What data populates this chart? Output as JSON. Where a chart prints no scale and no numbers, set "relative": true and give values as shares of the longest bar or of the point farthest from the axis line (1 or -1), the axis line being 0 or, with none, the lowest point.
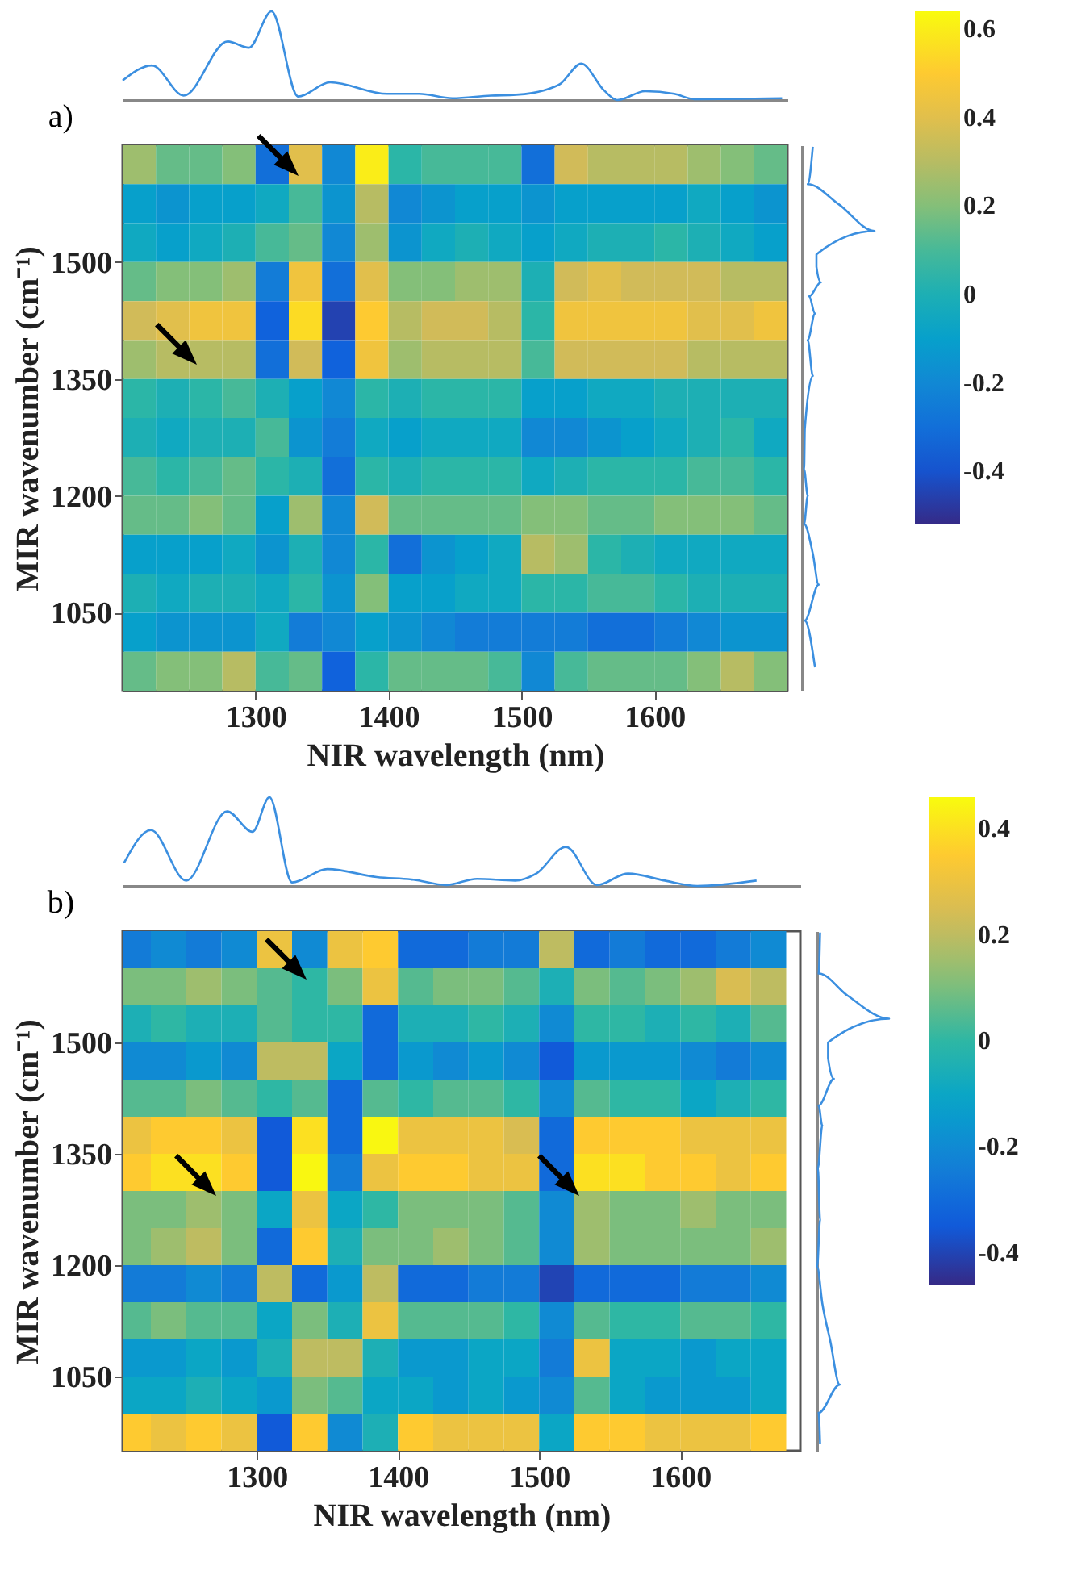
{
  "chart_data": [
    {
      "type": "line",
      "title": "a)",
      "relative": true,
      "tick_labels": false,
      "xlim": [
        1200,
        1700
      ],
      "x": [
        1200,
        1222,
        1246,
        1279,
        1295,
        1312,
        1332,
        1356,
        1399,
        1423,
        1448,
        1477,
        1496,
        1517,
        1529,
        1545,
        1562,
        1572,
        1593,
        1615,
        1630,
        1696
      ],
      "series": [
        {
          "color": "#3b8fe0",
          "values": [
            0.22,
            0.39,
            0.05,
            0.66,
            0.59,
            1.0,
            0.04,
            0.2,
            0.07,
            0.07,
            0.02,
            0.05,
            0.06,
            0.11,
            0.18,
            0.41,
            0.11,
            0,
            0.1,
            0.07,
            0.01,
            0.02
          ]
        }
      ]
    },
    {
      "type": "heatmap",
      "xlabel": "NIR wavelength (nm)",
      "ylabel": "MIR wavenumber (cm⁻¹)",
      "xlim": [
        1200,
        1700
      ],
      "ylim": [
        950,
        1650
      ],
      "xticks": [
        1300,
        1400,
        1500,
        1600
      ],
      "yticks": [
        1050,
        1200,
        1350,
        1500
      ],
      "clim": [
        -0.52,
        0.64
      ],
      "cticks": [
        -0.4,
        -0.2,
        0,
        0.2,
        0.4,
        0.6
      ],
      "x": [
        1212.5,
        1237.5,
        1262.5,
        1287.5,
        1312.5,
        1337.5,
        1362.5,
        1387.5,
        1412.5,
        1437.5,
        1462.5,
        1487.5,
        1512.5,
        1537.5,
        1562.5,
        1587.5,
        1612.5,
        1637.5,
        1662.5,
        1687.5
      ],
      "y": [
        1625,
        1575,
        1525,
        1475,
        1425,
        1375,
        1325,
        1275,
        1225,
        1175,
        1125,
        1075,
        1025,
        975
      ],
      "cells": [
        [
          0.25,
          0.15,
          0.15,
          0.2,
          -0.3,
          0.4,
          -0.2,
          0.6,
          0.05,
          0.1,
          0.1,
          0.1,
          -0.3,
          0.35,
          0.3,
          0.3,
          0.3,
          0.25,
          0.2,
          0.15
        ],
        [
          -0.1,
          -0.15,
          -0.1,
          -0.1,
          -0.05,
          0.1,
          -0.15,
          0.3,
          -0.2,
          -0.15,
          -0.1,
          -0.1,
          -0.15,
          -0.1,
          -0.1,
          -0.1,
          -0.1,
          -0.05,
          -0.1,
          -0.15
        ],
        [
          -0.05,
          -0.1,
          -0.05,
          0,
          0.1,
          0.15,
          -0.2,
          0.25,
          -0.15,
          -0.05,
          0,
          -0.05,
          -0.1,
          -0.05,
          0,
          0,
          0.05,
          0,
          -0.05,
          -0.1
        ],
        [
          0.15,
          0.2,
          0.2,
          0.25,
          -0.25,
          0.45,
          -0.3,
          0.4,
          0.2,
          0.2,
          0.25,
          0.25,
          0,
          0.35,
          0.4,
          0.35,
          0.35,
          0.35,
          0.3,
          0.3
        ],
        [
          0.35,
          0.4,
          0.45,
          0.45,
          -0.35,
          0.55,
          -0.45,
          0.5,
          0.3,
          0.35,
          0.35,
          0.3,
          0.05,
          0.45,
          0.45,
          0.45,
          0.45,
          0.4,
          0.4,
          0.45
        ],
        [
          0.25,
          0.3,
          0.3,
          0.3,
          -0.3,
          0.35,
          -0.35,
          0.45,
          0.25,
          0.3,
          0.3,
          0.3,
          0.1,
          0.35,
          0.35,
          0.35,
          0.35,
          0.3,
          0.3,
          0.3
        ],
        [
          0.05,
          0,
          0.05,
          0.1,
          0,
          -0.1,
          -0.2,
          0.05,
          0,
          0.05,
          0.05,
          0.05,
          -0.1,
          -0.1,
          -0.05,
          -0.05,
          0,
          0,
          0,
          0
        ],
        [
          0,
          -0.05,
          0,
          0,
          0.1,
          -0.15,
          -0.25,
          -0.05,
          -0.1,
          -0.05,
          -0.05,
          -0.05,
          -0.2,
          -0.2,
          -0.15,
          -0.1,
          -0.05,
          0,
          0.05,
          -0.05
        ],
        [
          0.1,
          0.05,
          0.1,
          0.15,
          0.05,
          0,
          -0.3,
          0.05,
          0,
          0.05,
          0.05,
          0.05,
          -0.05,
          0,
          0.05,
          0.05,
          0.05,
          0.1,
          0.1,
          0.05
        ],
        [
          0.15,
          0.15,
          0.2,
          0.15,
          -0.1,
          0.25,
          -0.2,
          0.35,
          0.15,
          0.15,
          0.15,
          0.15,
          0.2,
          0.2,
          0.15,
          0.15,
          0.2,
          0.2,
          0.2,
          0.15
        ],
        [
          -0.1,
          -0.1,
          -0.1,
          -0.05,
          -0.15,
          0,
          -0.2,
          0.05,
          -0.3,
          -0.15,
          -0.1,
          -0.05,
          0.3,
          0.25,
          0.05,
          0,
          -0.05,
          -0.05,
          -0.05,
          -0.05
        ],
        [
          0,
          -0.05,
          0,
          0,
          -0.05,
          0.05,
          -0.15,
          0.2,
          -0.1,
          -0.1,
          -0.05,
          -0.05,
          0.05,
          0.05,
          0.1,
          0.1,
          0.05,
          0,
          0,
          0
        ],
        [
          -0.1,
          -0.15,
          -0.15,
          -0.15,
          -0.05,
          -0.25,
          -0.2,
          -0.1,
          -0.15,
          -0.2,
          -0.25,
          -0.25,
          -0.25,
          -0.25,
          -0.3,
          -0.3,
          -0.25,
          -0.2,
          -0.15,
          -0.15
        ],
        [
          0.15,
          0.2,
          0.2,
          0.3,
          0.1,
          0.15,
          -0.35,
          0.05,
          0.15,
          0.15,
          0.15,
          0.1,
          -0.2,
          0.1,
          0.15,
          0.15,
          0.15,
          0.2,
          0.3,
          0.2
        ]
      ]
    },
    {
      "type": "line",
      "relative": true,
      "orientation": "horizontal",
      "tick_labels": false,
      "ylim": [
        950,
        1650
      ],
      "x": [
        1648,
        1600,
        1574,
        1540,
        1510,
        1494,
        1474,
        1456,
        1434,
        1400,
        1354,
        1286,
        1234,
        1200,
        1164,
        1126,
        1086,
        1040,
        980
      ],
      "series": [
        {
          "color": "#3b8fe0",
          "values": [
            0.15,
            0.08,
            0.51,
            1.0,
            0.2,
            0.2,
            0.26,
            0.1,
            0.18,
            0.08,
            0.15,
            0.04,
            0.03,
            0.08,
            0.03,
            0.15,
            0.23,
            0.04,
            0.18
          ]
        }
      ]
    },
    {
      "type": "line",
      "title": "b)",
      "relative": true,
      "tick_labels": false,
      "xlim": [
        1205,
        1685
      ],
      "x": [
        1206,
        1225,
        1250,
        1279,
        1297,
        1309,
        1325,
        1350,
        1385,
        1411,
        1434,
        1456,
        1483,
        1498,
        1519,
        1541,
        1563,
        1589,
        1612,
        1654
      ],
      "series": [
        {
          "color": "#3b8fe0",
          "values": [
            0.26,
            0.63,
            0.06,
            0.84,
            0.61,
            1.0,
            0.04,
            0.19,
            0.1,
            0.07,
            0.01,
            0.08,
            0.06,
            0.14,
            0.44,
            0.01,
            0.14,
            0.06,
            0,
            0.06
          ]
        }
      ]
    },
    {
      "type": "heatmap",
      "xlabel": "NIR wavelength (nm)",
      "ylabel": "MIR wavenumber (cm⁻¹)",
      "xlim": [
        1205,
        1685
      ],
      "ylim": [
        950,
        1650
      ],
      "xticks": [
        1300,
        1400,
        1500,
        1600
      ],
      "yticks": [
        1050,
        1200,
        1350,
        1500
      ],
      "clim": [
        -0.46,
        0.46
      ],
      "cticks": [
        -0.4,
        -0.2,
        0,
        0.2,
        0.4
      ],
      "x": [
        1212.5,
        1237.5,
        1262.5,
        1287.5,
        1312.5,
        1337.5,
        1362.5,
        1387.5,
        1412.5,
        1437.5,
        1462.5,
        1487.5,
        1512.5,
        1537.5,
        1562.5,
        1587.5,
        1612.5,
        1637.5,
        1662.5
      ],
      "y": [
        1625,
        1575,
        1525,
        1475,
        1425,
        1375,
        1325,
        1275,
        1225,
        1175,
        1125,
        1075,
        1025,
        975
      ],
      "cells": [
        [
          -0.25,
          -0.2,
          -0.25,
          -0.2,
          0.3,
          -0.2,
          0.3,
          0.35,
          -0.3,
          -0.3,
          -0.25,
          -0.25,
          0.2,
          -0.3,
          -0.25,
          -0.3,
          -0.3,
          -0.25,
          -0.2
        ],
        [
          0.1,
          0.1,
          0.15,
          0.1,
          0.05,
          0,
          0.1,
          0.3,
          0.05,
          0.1,
          0.1,
          0.05,
          -0.05,
          0.1,
          0.05,
          0.1,
          0.15,
          0.25,
          0.2
        ],
        [
          -0.05,
          0,
          -0.05,
          -0.05,
          0.05,
          0,
          0,
          -0.3,
          -0.05,
          -0.05,
          0,
          -0.05,
          -0.2,
          0,
          0,
          -0.05,
          0,
          -0.05,
          0.05
        ],
        [
          -0.2,
          -0.2,
          -0.15,
          -0.2,
          0.2,
          0.2,
          -0.1,
          -0.3,
          -0.15,
          -0.2,
          -0.15,
          -0.2,
          -0.35,
          -0.15,
          -0.15,
          -0.15,
          -0.2,
          -0.25,
          -0.2
        ],
        [
          0.05,
          0.05,
          0.1,
          0.05,
          0,
          0.05,
          -0.3,
          0.05,
          0,
          0.05,
          0.05,
          0,
          -0.2,
          0.05,
          0,
          0,
          -0.1,
          -0.05,
          0
        ],
        [
          0.3,
          0.35,
          0.35,
          0.3,
          -0.35,
          0.4,
          -0.3,
          0.45,
          0.3,
          0.3,
          0.3,
          0.25,
          -0.3,
          0.35,
          0.35,
          0.35,
          0.3,
          0.3,
          0.3
        ],
        [
          0.35,
          0.4,
          0.4,
          0.35,
          -0.35,
          0.45,
          -0.25,
          0.3,
          0.35,
          0.35,
          0.3,
          0.3,
          -0.3,
          0.4,
          0.4,
          0.35,
          0.35,
          0.3,
          0.35
        ],
        [
          0.1,
          0.1,
          0.15,
          0.1,
          -0.1,
          0.3,
          -0.1,
          0,
          0.1,
          0.1,
          0.1,
          0.05,
          -0.2,
          0.15,
          0.1,
          0.1,
          0.15,
          0.1,
          0.1
        ],
        [
          0.1,
          0.15,
          0.2,
          0.1,
          -0.3,
          0.35,
          -0.05,
          0.1,
          0.1,
          0.15,
          0.1,
          0.05,
          -0.2,
          0.15,
          0.1,
          0.1,
          0.1,
          0.1,
          0.15
        ],
        [
          -0.25,
          -0.25,
          -0.2,
          -0.25,
          0.2,
          -0.3,
          -0.15,
          0.2,
          -0.3,
          -0.3,
          -0.25,
          -0.25,
          -0.4,
          -0.3,
          -0.3,
          -0.3,
          -0.25,
          -0.25,
          -0.2
        ],
        [
          0.05,
          0.1,
          0.05,
          0.05,
          -0.1,
          0.1,
          -0.05,
          0.3,
          0.05,
          0.05,
          0.05,
          0,
          -0.2,
          0.05,
          0,
          0,
          0.05,
          0.05,
          0
        ],
        [
          -0.15,
          -0.15,
          -0.1,
          -0.15,
          -0.05,
          0.2,
          0.2,
          -0.05,
          -0.15,
          -0.15,
          -0.1,
          -0.1,
          -0.25,
          0.3,
          -0.1,
          -0.1,
          -0.15,
          -0.1,
          -0.1
        ],
        [
          -0.1,
          -0.1,
          -0.05,
          -0.1,
          -0.15,
          0.1,
          0.05,
          -0.1,
          -0.1,
          -0.15,
          -0.1,
          -0.15,
          -0.2,
          0.05,
          -0.1,
          -0.15,
          -0.15,
          -0.15,
          -0.1
        ],
        [
          0.35,
          0.3,
          0.35,
          0.3,
          -0.35,
          0.35,
          -0.2,
          -0.05,
          0.35,
          0.3,
          0.3,
          0.3,
          -0.1,
          0.35,
          0.35,
          0.3,
          0.3,
          0.3,
          0.35
        ]
      ]
    },
    {
      "type": "line",
      "relative": true,
      "orientation": "horizontal",
      "tick_labels": false,
      "ylim": [
        950,
        1650
      ],
      "x": [
        1648,
        1593,
        1563,
        1532,
        1500,
        1479,
        1451,
        1415,
        1388,
        1331,
        1261,
        1198,
        1149,
        1098,
        1039,
        1001,
        959
      ],
      "series": [
        {
          "color": "#3b8fe0",
          "values": [
            0.05,
            0.03,
            0.43,
            1.0,
            0.16,
            0.16,
            0.24,
            0.03,
            0.08,
            0.02,
            0.05,
            0.01,
            0.08,
            0.19,
            0.32,
            0.03,
            0.05
          ]
        }
      ]
    }
  ]
}
